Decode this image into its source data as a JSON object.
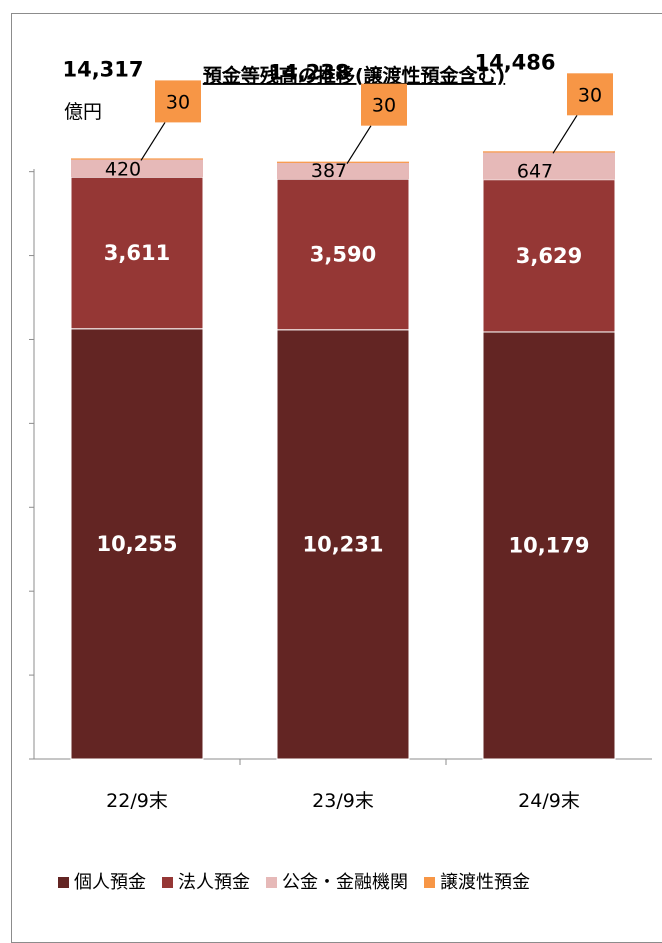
{
  "chart_data": {
    "type": "bar",
    "stacked": true,
    "title": "預金等残高の推移(譲渡性預金含む)",
    "ylabel": "億円",
    "categories": [
      "22/9末",
      "23/9末",
      "24/9末"
    ],
    "totals": [
      "14,317",
      "14,238",
      "14,486"
    ],
    "series": [
      {
        "name": "個人預金",
        "values": [
          10255,
          10231,
          10179
        ],
        "labels": [
          "10,255",
          "10,231",
          "10,179"
        ],
        "color": "#632523"
      },
      {
        "name": "法人預金",
        "values": [
          3611,
          3590,
          3629
        ],
        "labels": [
          "3,611",
          "3,590",
          "3,629"
        ],
        "color": "#953735"
      },
      {
        "name": "公金・金融機関",
        "values": [
          420,
          387,
          647
        ],
        "labels": [
          "420",
          "387",
          "647"
        ],
        "color": "#e6b9b8"
      },
      {
        "name": "譲渡性預金",
        "values": [
          30,
          30,
          30
        ],
        "labels": [
          "30",
          "30",
          "30"
        ],
        "color": "#f79646"
      }
    ],
    "ylim": [
      0,
      14000
    ],
    "yticks": [
      0,
      2000,
      4000,
      6000,
      8000,
      10000,
      12000,
      14000
    ],
    "ytick_labels_visible": false,
    "grid": false,
    "legend": "bottom"
  }
}
